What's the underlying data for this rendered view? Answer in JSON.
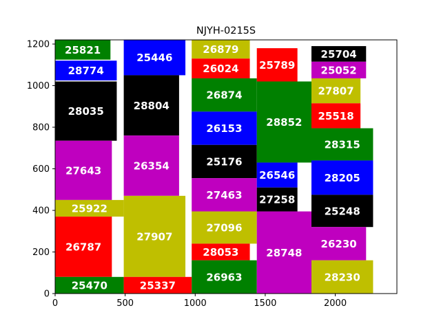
{
  "chart_data": {
    "type": "rectangle-packing",
    "title": "NJYH-0215S",
    "xlabel": "",
    "ylabel": "",
    "xlim": [
      0,
      2440
    ],
    "ylim": [
      0,
      1220
    ],
    "xticks": [
      0,
      500,
      1000,
      1500,
      2000
    ],
    "yticks": [
      0,
      200,
      400,
      600,
      800,
      1000,
      1200
    ],
    "grid": false,
    "colors": {
      "green": "#008000",
      "blue": "#0000ff",
      "black": "#000000",
      "magenta": "#bf00bf",
      "olive": "#bfbf00",
      "red": "#ff0000"
    },
    "rects": [
      {
        "label": "25821",
        "x0": 0,
        "y0": 1125,
        "x1": 395,
        "y1": 1220,
        "color": "green",
        "text_color": "white"
      },
      {
        "label": "28774",
        "x0": 0,
        "y0": 1025,
        "x1": 440,
        "y1": 1120,
        "color": "blue",
        "text_color": "white"
      },
      {
        "label": "28035",
        "x0": 0,
        "y0": 735,
        "x1": 440,
        "y1": 1020,
        "color": "black",
        "text_color": "white"
      },
      {
        "label": "27643",
        "x0": 0,
        "y0": 450,
        "x1": 405,
        "y1": 735,
        "color": "magenta",
        "text_color": "white"
      },
      {
        "label": "25922",
        "x0": 0,
        "y0": 370,
        "x1": 490,
        "y1": 450,
        "color": "olive",
        "text_color": "white"
      },
      {
        "label": "26787",
        "x0": 0,
        "y0": 80,
        "x1": 405,
        "y1": 370,
        "color": "red",
        "text_color": "white"
      },
      {
        "label": "25470",
        "x0": 0,
        "y0": 0,
        "x1": 490,
        "y1": 80,
        "color": "green",
        "text_color": "white"
      },
      {
        "label": "25446",
        "x0": 490,
        "y0": 1050,
        "x1": 930,
        "y1": 1220,
        "color": "blue",
        "text_color": "white"
      },
      {
        "label": "28804",
        "x0": 490,
        "y0": 760,
        "x1": 885,
        "y1": 1050,
        "color": "black",
        "text_color": "white"
      },
      {
        "label": "26354",
        "x0": 490,
        "y0": 470,
        "x1": 885,
        "y1": 760,
        "color": "magenta",
        "text_color": "white"
      },
      {
        "label": "27907",
        "x0": 490,
        "y0": 80,
        "x1": 930,
        "y1": 470,
        "color": "olive",
        "text_color": "white"
      },
      {
        "label": "25337",
        "x0": 490,
        "y0": 0,
        "x1": 975,
        "y1": 80,
        "color": "red",
        "text_color": "white"
      },
      {
        "label": "26879",
        "x0": 975,
        "y0": 1130,
        "x1": 1390,
        "y1": 1220,
        "color": "olive",
        "text_color": "white"
      },
      {
        "label": "26024",
        "x0": 975,
        "y0": 1035,
        "x1": 1390,
        "y1": 1130,
        "color": "red",
        "text_color": "white"
      },
      {
        "label": "26874",
        "x0": 975,
        "y0": 875,
        "x1": 1440,
        "y1": 1035,
        "color": "green",
        "text_color": "white"
      },
      {
        "label": "26153",
        "x0": 975,
        "y0": 715,
        "x1": 1440,
        "y1": 875,
        "color": "blue",
        "text_color": "white"
      },
      {
        "label": "25176",
        "x0": 975,
        "y0": 555,
        "x1": 1440,
        "y1": 715,
        "color": "black",
        "text_color": "white"
      },
      {
        "label": "27463",
        "x0": 975,
        "y0": 395,
        "x1": 1440,
        "y1": 555,
        "color": "magenta",
        "text_color": "white"
      },
      {
        "label": "27096",
        "x0": 975,
        "y0": 240,
        "x1": 1440,
        "y1": 395,
        "color": "olive",
        "text_color": "white"
      },
      {
        "label": "28053",
        "x0": 975,
        "y0": 160,
        "x1": 1390,
        "y1": 240,
        "color": "red",
        "text_color": "white"
      },
      {
        "label": "26963",
        "x0": 975,
        "y0": 0,
        "x1": 1440,
        "y1": 160,
        "color": "green",
        "text_color": "white"
      },
      {
        "label": "25789",
        "x0": 1440,
        "y0": 1020,
        "x1": 1730,
        "y1": 1180,
        "color": "red",
        "text_color": "white"
      },
      {
        "label": "28852",
        "x0": 1440,
        "y0": 630,
        "x1": 1830,
        "y1": 1020,
        "color": "green",
        "text_color": "white"
      },
      {
        "label": "26546",
        "x0": 1440,
        "y0": 510,
        "x1": 1730,
        "y1": 630,
        "color": "blue",
        "text_color": "white"
      },
      {
        "label": "27258",
        "x0": 1440,
        "y0": 395,
        "x1": 1730,
        "y1": 510,
        "color": "black",
        "text_color": "white"
      },
      {
        "label": "28748",
        "x0": 1440,
        "y0": 0,
        "x1": 1830,
        "y1": 395,
        "color": "magenta",
        "text_color": "white"
      },
      {
        "label": "25704",
        "x0": 1830,
        "y0": 1115,
        "x1": 2220,
        "y1": 1190,
        "color": "black",
        "text_color": "white"
      },
      {
        "label": "25052",
        "x0": 1830,
        "y0": 1035,
        "x1": 2220,
        "y1": 1115,
        "color": "magenta",
        "text_color": "white"
      },
      {
        "label": "27807",
        "x0": 1830,
        "y0": 915,
        "x1": 2180,
        "y1": 1035,
        "color": "olive",
        "text_color": "white"
      },
      {
        "label": "25518",
        "x0": 1830,
        "y0": 795,
        "x1": 2180,
        "y1": 915,
        "color": "red",
        "text_color": "white"
      },
      {
        "label": "28315",
        "x0": 1830,
        "y0": 640,
        "x1": 2270,
        "y1": 795,
        "color": "green",
        "text_color": "white"
      },
      {
        "label": "28205",
        "x0": 1830,
        "y0": 475,
        "x1": 2270,
        "y1": 640,
        "color": "blue",
        "text_color": "white"
      },
      {
        "label": "25248",
        "x0": 1830,
        "y0": 320,
        "x1": 2270,
        "y1": 475,
        "color": "black",
        "text_color": "white"
      },
      {
        "label": "26230",
        "x0": 1830,
        "y0": 160,
        "x1": 2220,
        "y1": 320,
        "color": "magenta",
        "text_color": "white"
      },
      {
        "label": "28230",
        "x0": 1830,
        "y0": 0,
        "x1": 2270,
        "y1": 160,
        "color": "olive",
        "text_color": "white"
      }
    ]
  }
}
